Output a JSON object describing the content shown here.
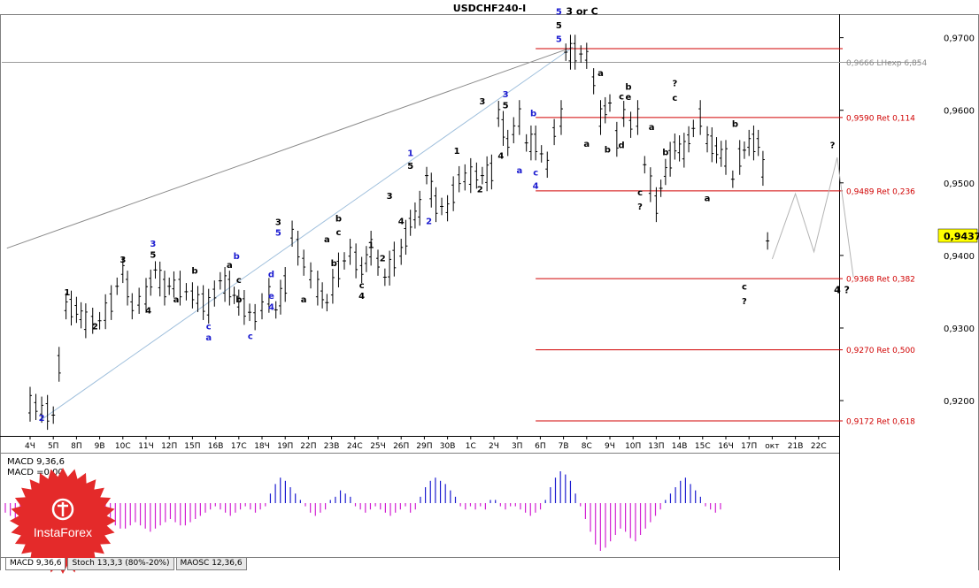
{
  "title": "USDCHF240-I",
  "price_label": "0,9437",
  "colors": {
    "bar": "#000000",
    "fib": "#d00000",
    "macd_pos": "#1c1cd0",
    "macd_neg": "#d21fd2",
    "wave_blue": "#1c1cd0",
    "price_bg": "#ffff00"
  },
  "chart_data": {
    "type": "line",
    "title": "USDCHF240-I",
    "ylim": [
      0.9155,
      0.973
    ],
    "y_ticks": [
      {
        "label": "0,9700",
        "value": 0.97
      },
      {
        "label": "0,9600",
        "value": 0.96
      },
      {
        "label": "0,9500",
        "value": 0.95
      },
      {
        "label": "0,9400",
        "value": 0.94
      },
      {
        "label": "0,9300",
        "value": 0.93
      },
      {
        "label": "0,9200",
        "value": 0.92
      }
    ],
    "x_ticks": [
      "4Ч",
      "5П",
      "8П",
      "9В",
      "10С",
      "11Ч",
      "12П",
      "15П",
      "16В",
      "17С",
      "18Ч",
      "19П",
      "22П",
      "23В",
      "24С",
      "25Ч",
      "26П",
      "29П",
      "30В",
      "1С",
      "2Ч",
      "3П",
      "6П",
      "7В",
      "8С",
      "9Ч",
      "10П",
      "13П",
      "14В",
      "15С",
      "16Ч",
      "17П",
      "окт",
      "21В",
      "22С"
    ],
    "price_series": [
      {
        "x": 0,
        "y": 0.9195
      },
      {
        "x": 1,
        "y": 0.918
      },
      {
        "x": 1.25,
        "y": 0.925
      },
      {
        "x": 1.55,
        "y": 0.933
      },
      {
        "x": 2,
        "y": 0.9325
      },
      {
        "x": 2.4,
        "y": 0.931
      },
      {
        "x": 3,
        "y": 0.931
      },
      {
        "x": 3.5,
        "y": 0.9335
      },
      {
        "x": 4,
        "y": 0.938
      },
      {
        "x": 4.4,
        "y": 0.933
      },
      {
        "x": 5,
        "y": 0.9345
      },
      {
        "x": 5.4,
        "y": 0.938
      },
      {
        "x": 5.8,
        "y": 0.9355
      },
      {
        "x": 6.2,
        "y": 0.936
      },
      {
        "x": 7,
        "y": 0.9345
      },
      {
        "x": 7.7,
        "y": 0.933
      },
      {
        "x": 8.2,
        "y": 0.9365
      },
      {
        "x": 8.6,
        "y": 0.9355
      },
      {
        "x": 9,
        "y": 0.9335
      },
      {
        "x": 9.7,
        "y": 0.9315
      },
      {
        "x": 10.3,
        "y": 0.9345
      },
      {
        "x": 10.6,
        "y": 0.9325
      },
      {
        "x": 11,
        "y": 0.936
      },
      {
        "x": 11.3,
        "y": 0.943
      },
      {
        "x": 11.8,
        "y": 0.939
      },
      {
        "x": 12.4,
        "y": 0.9355
      },
      {
        "x": 12.8,
        "y": 0.9335
      },
      {
        "x": 13.3,
        "y": 0.938
      },
      {
        "x": 13.8,
        "y": 0.9405
      },
      {
        "x": 14.3,
        "y": 0.938
      },
      {
        "x": 14.7,
        "y": 0.941
      },
      {
        "x": 15.3,
        "y": 0.937
      },
      {
        "x": 15.7,
        "y": 0.9395
      },
      {
        "x": 16,
        "y": 0.9405
      },
      {
        "x": 16.4,
        "y": 0.9445
      },
      {
        "x": 16.8,
        "y": 0.9465
      },
      {
        "x": 17.1,
        "y": 0.951
      },
      {
        "x": 17.5,
        "y": 0.947
      },
      {
        "x": 18,
        "y": 0.9465
      },
      {
        "x": 18.5,
        "y": 0.9505
      },
      {
        "x": 19,
        "y": 0.951
      },
      {
        "x": 19.5,
        "y": 0.951
      },
      {
        "x": 19.9,
        "y": 0.9515
      },
      {
        "x": 20.2,
        "y": 0.9595
      },
      {
        "x": 20.6,
        "y": 0.9555
      },
      {
        "x": 21.1,
        "y": 0.959
      },
      {
        "x": 21.4,
        "y": 0.9555
      },
      {
        "x": 21.8,
        "y": 0.9555
      },
      {
        "x": 22.3,
        "y": 0.9525
      },
      {
        "x": 22.6,
        "y": 0.957
      },
      {
        "x": 22.9,
        "y": 0.959
      },
      {
        "x": 23.1,
        "y": 0.968
      },
      {
        "x": 23.5,
        "y": 0.968
      },
      {
        "x": 24,
        "y": 0.9675
      },
      {
        "x": 24.3,
        "y": 0.964
      },
      {
        "x": 24.6,
        "y": 0.959
      },
      {
        "x": 25,
        "y": 0.961
      },
      {
        "x": 25.3,
        "y": 0.956
      },
      {
        "x": 25.6,
        "y": 0.9595
      },
      {
        "x": 25.9,
        "y": 0.958
      },
      {
        "x": 26.2,
        "y": 0.959
      },
      {
        "x": 26.5,
        "y": 0.9525
      },
      {
        "x": 27,
        "y": 0.947
      },
      {
        "x": 27.4,
        "y": 0.9515
      },
      {
        "x": 27.8,
        "y": 0.955
      },
      {
        "x": 28.2,
        "y": 0.9545
      },
      {
        "x": 28.6,
        "y": 0.9575
      },
      {
        "x": 28.9,
        "y": 0.959
      },
      {
        "x": 29.2,
        "y": 0.956
      },
      {
        "x": 29.6,
        "y": 0.9545
      },
      {
        "x": 30,
        "y": 0.9535
      },
      {
        "x": 30.3,
        "y": 0.9505
      },
      {
        "x": 30.6,
        "y": 0.9535
      },
      {
        "x": 31,
        "y": 0.9555
      },
      {
        "x": 31.4,
        "y": 0.9555
      },
      {
        "x": 31.6,
        "y": 0.952
      },
      {
        "x": 31.8,
        "y": 0.942
      },
      {
        "x": 32,
        "y": 0.942
      }
    ],
    "projection": [
      {
        "x": 32,
        "y": 0.9395
      },
      {
        "x": 33,
        "y": 0.9485
      },
      {
        "x": 33.8,
        "y": 0.9405
      },
      {
        "x": 34.8,
        "y": 0.9535
      },
      {
        "x": 35.5,
        "y": 0.937
      }
    ],
    "trendlines": [
      {
        "x1": -1,
        "y1": 0.941,
        "x2": 23.4,
        "y2": 0.9687
      },
      {
        "x1": 0.5,
        "y1": 0.9174,
        "x2": 23.4,
        "y2": 0.9687
      }
    ],
    "fib_levels": [
      {
        "label": "0,9666 LHexp 6,854",
        "value": 0.9666,
        "style": "gray"
      },
      {
        "label": "",
        "value": 0.9685,
        "style": "red"
      },
      {
        "label": "0,9590 Ret 0,114",
        "value": 0.959,
        "style": "red"
      },
      {
        "label": "0,9489 Ret 0,236",
        "value": 0.9489,
        "style": "red"
      },
      {
        "label": "0,9368 Ret 0,382",
        "value": 0.9368,
        "style": "red"
      },
      {
        "label": "0,9270 Ret 0,500",
        "value": 0.927,
        "style": "red"
      },
      {
        "label": "0,9172 Ret 0,618",
        "value": 0.9172,
        "style": "red"
      }
    ],
    "wave_labels": [
      {
        "t": "2",
        "x": 0.5,
        "y": 0.9172,
        "c": "blue"
      },
      {
        "t": "1",
        "x": 1.6,
        "y": 0.9345,
        "c": "black"
      },
      {
        "t": "2",
        "x": 2.8,
        "y": 0.9298,
        "c": "black"
      },
      {
        "t": "3",
        "x": 4,
        "y": 0.939,
        "c": "black"
      },
      {
        "t": "4",
        "x": 5.1,
        "y": 0.932,
        "c": "black"
      },
      {
        "t": "3",
        "x": 5.3,
        "y": 0.9412,
        "c": "blue"
      },
      {
        "t": "5",
        "x": 5.3,
        "y": 0.9397,
        "c": "black"
      },
      {
        "t": "a",
        "x": 6.3,
        "y": 0.9335,
        "c": "black"
      },
      {
        "t": "b",
        "x": 7.1,
        "y": 0.9375,
        "c": "black"
      },
      {
        "t": "c",
        "x": 7.7,
        "y": 0.9298,
        "c": "blue"
      },
      {
        "t": "a",
        "x": 7.7,
        "y": 0.9283,
        "c": "blue"
      },
      {
        "t": "a",
        "x": 8.6,
        "y": 0.9383,
        "c": "black"
      },
      {
        "t": "b",
        "x": 8.9,
        "y": 0.9395,
        "c": "blue"
      },
      {
        "t": "c",
        "x": 9,
        "y": 0.9362,
        "c": "black"
      },
      {
        "t": "b",
        "x": 9,
        "y": 0.9335,
        "c": "black"
      },
      {
        "t": "c",
        "x": 9.5,
        "y": 0.9285,
        "c": "blue"
      },
      {
        "t": "d",
        "x": 10.4,
        "y": 0.937,
        "c": "blue"
      },
      {
        "t": "e",
        "x": 10.4,
        "y": 0.934,
        "c": "blue"
      },
      {
        "t": "4",
        "x": 10.4,
        "y": 0.9325,
        "c": "blue"
      },
      {
        "t": "3",
        "x": 10.7,
        "y": 0.9442,
        "c": "black"
      },
      {
        "t": "5",
        "x": 10.7,
        "y": 0.9427,
        "c": "blue"
      },
      {
        "t": "a",
        "x": 11.8,
        "y": 0.9335,
        "c": "black"
      },
      {
        "t": "a",
        "x": 12.8,
        "y": 0.9418,
        "c": "black"
      },
      {
        "t": "c",
        "x": 13.3,
        "y": 0.9428,
        "c": "black"
      },
      {
        "t": "b",
        "x": 13.3,
        "y": 0.9447,
        "c": "black"
      },
      {
        "t": "b",
        "x": 13.1,
        "y": 0.9385,
        "c": "black"
      },
      {
        "t": "c",
        "x": 14.3,
        "y": 0.9355,
        "c": "black"
      },
      {
        "t": "4",
        "x": 14.3,
        "y": 0.934,
        "c": "black"
      },
      {
        "t": "1",
        "x": 14.7,
        "y": 0.941,
        "c": "black"
      },
      {
        "t": "2",
        "x": 15.2,
        "y": 0.9392,
        "c": "black"
      },
      {
        "t": "3",
        "x": 15.5,
        "y": 0.9478,
        "c": "black"
      },
      {
        "t": "4",
        "x": 16,
        "y": 0.9443,
        "c": "black"
      },
      {
        "t": "1",
        "x": 16.4,
        "y": 0.9537,
        "c": "blue"
      },
      {
        "t": "5",
        "x": 16.4,
        "y": 0.9519,
        "c": "black"
      },
      {
        "t": "2",
        "x": 17.2,
        "y": 0.9443,
        "c": "blue"
      },
      {
        "t": "1",
        "x": 18.4,
        "y": 0.954,
        "c": "black"
      },
      {
        "t": "2",
        "x": 19.4,
        "y": 0.9487,
        "c": "black"
      },
      {
        "t": "3",
        "x": 19.5,
        "y": 0.9608,
        "c": "black"
      },
      {
        "t": "4",
        "x": 20.3,
        "y": 0.9533,
        "c": "black"
      },
      {
        "t": "3",
        "x": 20.5,
        "y": 0.9618,
        "c": "blue"
      },
      {
        "t": "5",
        "x": 20.5,
        "y": 0.9603,
        "c": "black"
      },
      {
        "t": "b",
        "x": 21.7,
        "y": 0.9592,
        "c": "blue"
      },
      {
        "t": "a",
        "x": 21.1,
        "y": 0.9513,
        "c": "blue"
      },
      {
        "t": "c",
        "x": 21.8,
        "y": 0.951,
        "c": "blue"
      },
      {
        "t": "4",
        "x": 21.8,
        "y": 0.9492,
        "c": "blue"
      },
      {
        "t": "5",
        "x": 22.8,
        "y": 0.9732,
        "c": "blue"
      },
      {
        "t": "5",
        "x": 22.8,
        "y": 0.9713,
        "c": "black"
      },
      {
        "t": "5",
        "x": 22.8,
        "y": 0.9694,
        "c": "blue"
      },
      {
        "t": "3 or C",
        "x": 23.8,
        "y": 0.9732,
        "c": "black"
      },
      {
        "t": "a",
        "x": 24.6,
        "y": 0.9647,
        "c": "black"
      },
      {
        "t": "a",
        "x": 24,
        "y": 0.955,
        "c": "black"
      },
      {
        "t": "b",
        "x": 24.9,
        "y": 0.9542,
        "c": "black"
      },
      {
        "t": "c",
        "x": 25.5,
        "y": 0.9615,
        "c": "black"
      },
      {
        "t": "b",
        "x": 25.8,
        "y": 0.9628,
        "c": "black"
      },
      {
        "t": "e",
        "x": 25.8,
        "y": 0.9614,
        "c": "black"
      },
      {
        "t": "d",
        "x": 25.5,
        "y": 0.9548,
        "c": "black"
      },
      {
        "t": "c",
        "x": 26.3,
        "y": 0.9483,
        "c": "black"
      },
      {
        "t": "?",
        "x": 26.3,
        "y": 0.9463,
        "c": "black"
      },
      {
        "t": "a",
        "x": 26.8,
        "y": 0.9573,
        "c": "black"
      },
      {
        "t": "b",
        "x": 27.4,
        "y": 0.9538,
        "c": "black"
      },
      {
        "t": "?",
        "x": 27.8,
        "y": 0.9633,
        "c": "black"
      },
      {
        "t": "c",
        "x": 27.8,
        "y": 0.9613,
        "c": "black"
      },
      {
        "t": "a",
        "x": 29.2,
        "y": 0.9475,
        "c": "black"
      },
      {
        "t": "b",
        "x": 30.4,
        "y": 0.9577,
        "c": "black"
      },
      {
        "t": "c",
        "x": 30.8,
        "y": 0.9353,
        "c": "black"
      },
      {
        "t": "?",
        "x": 30.8,
        "y": 0.9333,
        "c": "black"
      },
      {
        "t": "?",
        "x": 34.6,
        "y": 0.9548,
        "c": "black"
      },
      {
        "t": "4 ?",
        "x": 35,
        "y": 0.9348,
        "c": "black"
      }
    ],
    "macd": {
      "label": "MACD 9,36,6",
      "signal_label": "MACD =0,00",
      "values": [
        -0.3,
        -0.4,
        -0.5,
        -0.6,
        -0.5,
        -0.4,
        -0.3,
        -0.2,
        -0.3,
        -0.4,
        -0.5,
        -0.4,
        -0.3,
        -0.2,
        -0.1,
        -0.2,
        -0.3,
        -0.2,
        -0.1,
        -0.3,
        -0.4,
        -0.6,
        -0.7,
        -0.8,
        -0.8,
        -0.7,
        -0.6,
        -0.7,
        -0.8,
        -0.9,
        -0.8,
        -0.7,
        -0.6,
        -0.5,
        -0.6,
        -0.7,
        -0.7,
        -0.6,
        -0.5,
        -0.4,
        -0.3,
        -0.2,
        -0.1,
        -0.2,
        -0.3,
        -0.4,
        -0.3,
        -0.2,
        -0.1,
        -0.2,
        -0.3,
        -0.2,
        -0.1,
        0.3,
        0.6,
        0.8,
        0.7,
        0.5,
        0.3,
        0.1,
        -0.1,
        -0.3,
        -0.4,
        -0.3,
        -0.2,
        0.1,
        0.2,
        0.4,
        0.3,
        0.2,
        -0.1,
        -0.2,
        -0.3,
        -0.2,
        -0.1,
        -0.2,
        -0.3,
        -0.4,
        -0.3,
        -0.2,
        -0.1,
        -0.3,
        -0.2,
        0.2,
        0.5,
        0.7,
        0.8,
        0.7,
        0.6,
        0.4,
        0.2,
        -0.1,
        -0.2,
        -0.1,
        -0.2,
        -0.1,
        -0.2,
        0.1,
        0.1,
        -0.1,
        -0.2,
        -0.1,
        -0.1,
        -0.2,
        -0.3,
        -0.4,
        -0.3,
        -0.2,
        0.1,
        0.5,
        0.8,
        1.0,
        0.9,
        0.7,
        0.3,
        -0.1,
        -0.5,
        -0.9,
        -1.3,
        -1.5,
        -1.4,
        -1.2,
        -1.0,
        -0.8,
        -0.9,
        -1.1,
        -1.2,
        -1.0,
        -0.8,
        -0.6,
        -0.4,
        -0.2,
        0.1,
        0.3,
        0.5,
        0.7,
        0.8,
        0.6,
        0.4,
        0.2,
        -0.1,
        -0.2,
        -0.3,
        -0.2,
        0.1,
        0.3,
        0.5,
        0.4,
        0.2
      ]
    }
  },
  "tabs": [
    "MACD 9,36,6",
    "Stoch 13,3,3 (80%-20%)",
    "MAOSC 12,36,6"
  ],
  "logo": {
    "text": "InstaForex"
  }
}
